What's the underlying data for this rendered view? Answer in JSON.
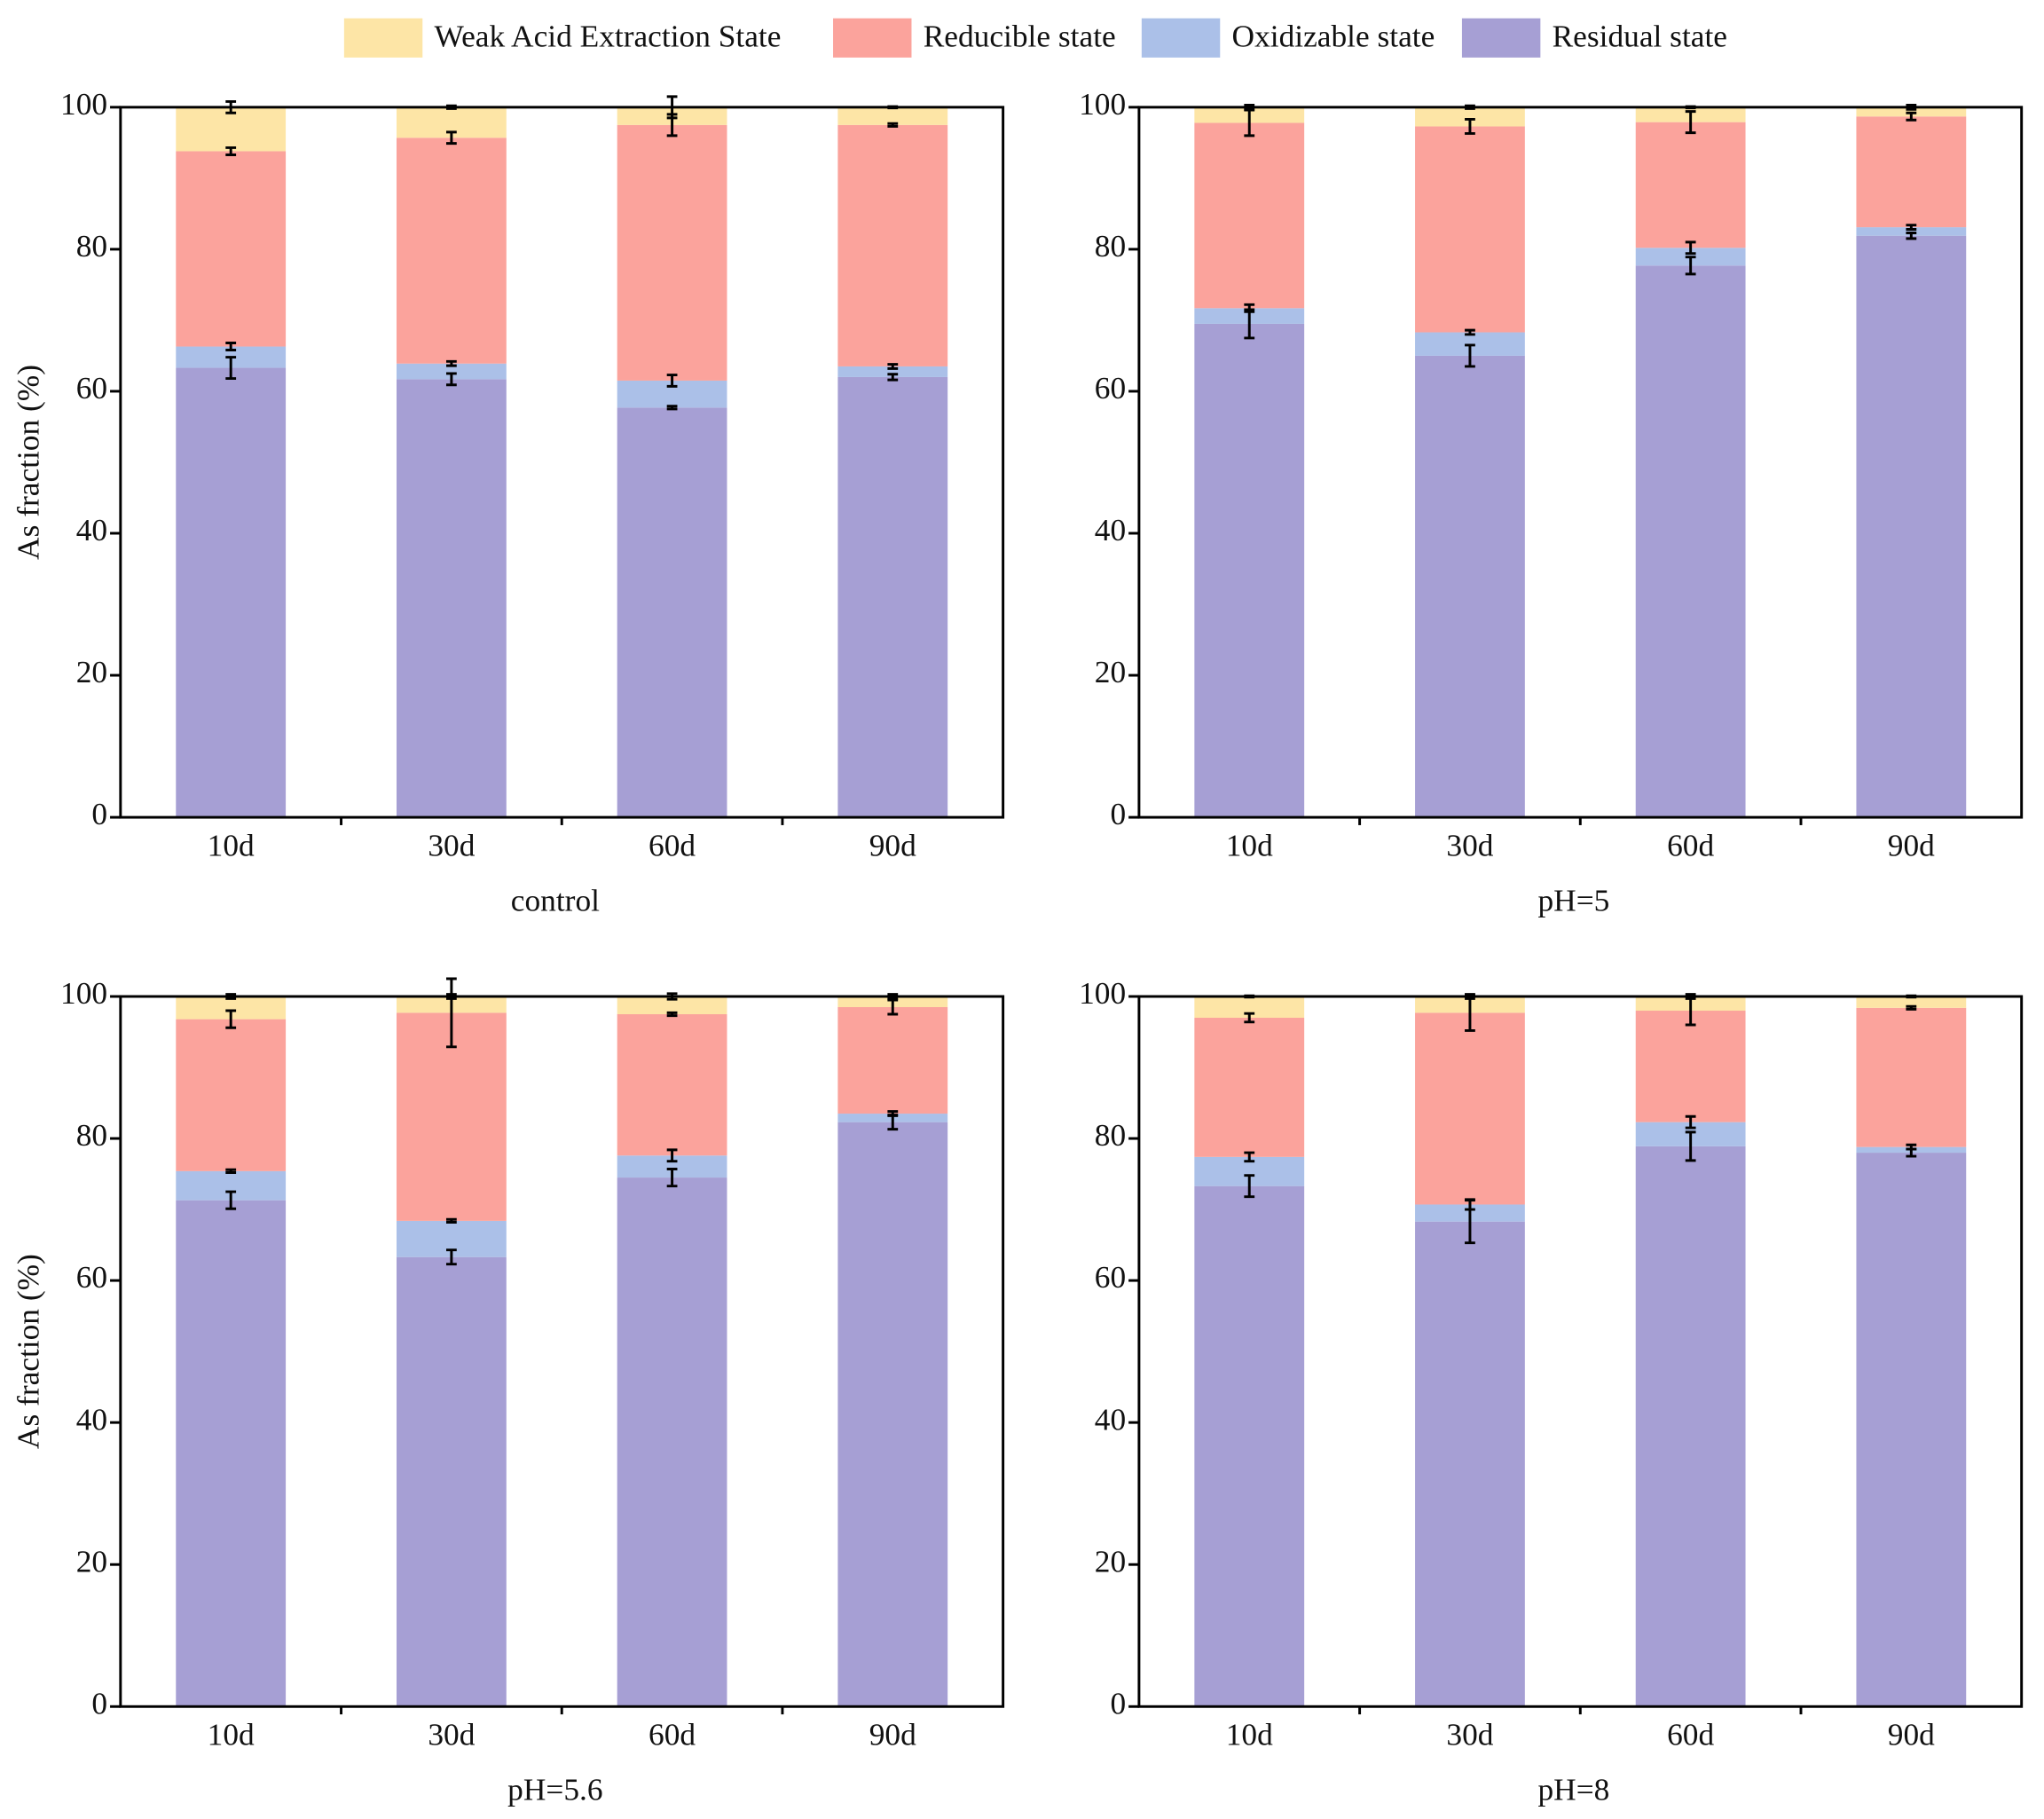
{
  "chart_data": [
    {
      "type": "stacked-bar",
      "xlabel": "control",
      "ylabel": "As fraction (%)",
      "categories": [
        "10d",
        "30d",
        "60d",
        "90d"
      ],
      "ylim": [
        0,
        100
      ],
      "yticks": [
        0,
        20,
        40,
        60,
        80,
        100
      ],
      "series": [
        {
          "name": "Weak Acid Extraction State",
          "color": "#fde5a6",
          "values": [
            6.2,
            4.3,
            2.5,
            2.5
          ],
          "errors": [
            0.8,
            0.2,
            1.5,
            0.1
          ]
        },
        {
          "name": "Reducible state",
          "color": "#fba39c",
          "values": [
            27.5,
            31.8,
            36.0,
            34.0
          ],
          "errors": [
            0.5,
            0.8,
            1.5,
            0.2
          ]
        },
        {
          "name": "Oxidizable state",
          "color": "#abc0e8",
          "values": [
            3.0,
            2.2,
            3.8,
            1.5
          ],
          "errors": [
            0.5,
            0.3,
            0.8,
            0.3
          ]
        },
        {
          "name": "Residual state",
          "color": "#a69fd4",
          "values": [
            63.3,
            61.7,
            57.7,
            62.0
          ],
          "errors": [
            1.5,
            0.8,
            0.2,
            0.4
          ]
        }
      ]
    },
    {
      "type": "stacked-bar",
      "xlabel": "pH=5",
      "categories": [
        "10d",
        "30d",
        "60d",
        "90d"
      ],
      "ylim": [
        0,
        100
      ],
      "yticks": [
        0,
        20,
        40,
        60,
        80,
        100
      ],
      "series": [
        {
          "name": "Weak Acid Extraction State",
          "color": "#fde5a6",
          "values": [
            2.2,
            2.7,
            2.1,
            1.3
          ],
          "errors": [
            0.3,
            0.2,
            0.1,
            0.3
          ]
        },
        {
          "name": "Reducible state",
          "color": "#fba39c",
          "values": [
            26.1,
            29.0,
            17.7,
            15.6
          ],
          "errors": [
            1.8,
            1.0,
            1.5,
            0.5
          ]
        },
        {
          "name": "Oxidizable state",
          "color": "#abc0e8",
          "values": [
            2.2,
            3.3,
            2.5,
            1.2
          ],
          "errors": [
            0.5,
            0.3,
            0.8,
            0.3
          ]
        },
        {
          "name": "Residual state",
          "color": "#a69fd4",
          "values": [
            69.5,
            65.0,
            77.7,
            81.9
          ],
          "errors": [
            2.0,
            1.5,
            1.2,
            0.4
          ]
        }
      ]
    },
    {
      "type": "stacked-bar",
      "xlabel": "pH=5.6",
      "ylabel": "As fraction (%)",
      "categories": [
        "10d",
        "30d",
        "60d",
        "90d"
      ],
      "ylim": [
        0,
        100
      ],
      "yticks": [
        0,
        20,
        40,
        60,
        80,
        100
      ],
      "series": [
        {
          "name": "Weak Acid Extraction State",
          "color": "#fde5a6",
          "values": [
            3.2,
            2.3,
            2.5,
            1.5
          ],
          "errors": [
            0.3,
            0.3,
            0.4,
            0.3
          ]
        },
        {
          "name": "Reducible state",
          "color": "#fba39c",
          "values": [
            21.4,
            29.3,
            19.9,
            15.0
          ],
          "errors": [
            1.2,
            4.8,
            0.2,
            1.0
          ]
        },
        {
          "name": "Oxidizable state",
          "color": "#abc0e8",
          "values": [
            4.1,
            5.1,
            3.1,
            1.2
          ],
          "errors": [
            0.2,
            0.2,
            0.8,
            0.3
          ]
        },
        {
          "name": "Residual state",
          "color": "#a69fd4",
          "values": [
            71.3,
            63.3,
            74.5,
            82.3
          ],
          "errors": [
            1.2,
            1.0,
            1.2,
            1.0
          ]
        }
      ]
    },
    {
      "type": "stacked-bar",
      "xlabel": "pH=8",
      "categories": [
        "10d",
        "30d",
        "60d",
        "90d"
      ],
      "ylim": [
        0,
        100
      ],
      "yticks": [
        0,
        20,
        40,
        60,
        80,
        100
      ],
      "series": [
        {
          "name": "Weak Acid Extraction State",
          "color": "#fde5a6",
          "values": [
            3.0,
            2.3,
            2.0,
            1.6
          ],
          "errors": [
            0.1,
            0.3,
            0.3,
            0.1
          ]
        },
        {
          "name": "Reducible state",
          "color": "#fba39c",
          "values": [
            19.6,
            27.0,
            15.7,
            19.6
          ],
          "errors": [
            0.6,
            2.5,
            2.0,
            0.2
          ]
        },
        {
          "name": "Oxidizable state",
          "color": "#abc0e8",
          "values": [
            4.1,
            2.4,
            3.4,
            0.8
          ],
          "errors": [
            0.6,
            0.7,
            0.8,
            0.3
          ]
        },
        {
          "name": "Residual state",
          "color": "#a69fd4",
          "values": [
            73.3,
            68.3,
            78.9,
            78.0
          ],
          "errors": [
            1.5,
            3.0,
            2.0,
            0.5
          ]
        }
      ]
    }
  ]
}
